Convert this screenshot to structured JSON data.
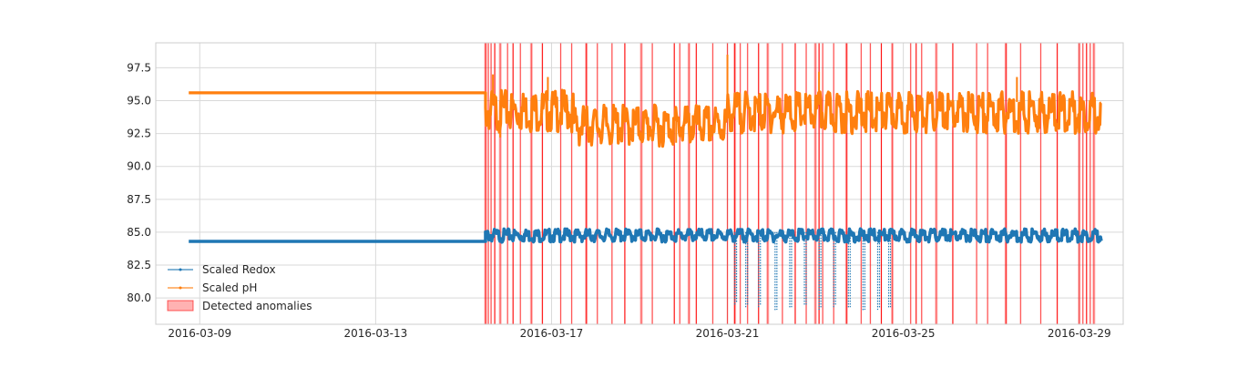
{
  "chart_data": {
    "type": "line",
    "title": "",
    "xlabel": "",
    "ylabel": "",
    "x_start": "2016-03-08",
    "x_end": "2016-03-30",
    "ylim": [
      78.0,
      99.4
    ],
    "xticks": [
      "2016-03-09",
      "2016-03-13",
      "2016-03-17",
      "2016-03-21",
      "2016-03-25",
      "2016-03-29"
    ],
    "yticks": [
      80.0,
      82.5,
      85.0,
      87.5,
      90.0,
      92.5,
      95.0,
      97.5
    ],
    "grid": true,
    "legend_position": "lower-left",
    "series": [
      {
        "name": "Scaled Redox",
        "color": "#1f77b4",
        "flat_segment": {
          "x_start": "2016-03-08 18:00",
          "x_end": "2016-03-15 12:00",
          "y": 84.3
        },
        "baseline_after": 85.0,
        "dips": [
          {
            "x": "2016-03-21 04:00",
            "y": 79.5
          },
          {
            "x": "2016-03-21 10:00",
            "y": 79.3
          },
          {
            "x": "2016-03-21 17:00",
            "y": 79.3
          },
          {
            "x": "2016-03-22 02:00",
            "y": 79.0
          },
          {
            "x": "2016-03-22 10:00",
            "y": 79.2
          },
          {
            "x": "2016-03-22 18:00",
            "y": 79.4
          },
          {
            "x": "2016-03-23 02:00",
            "y": 79.1
          },
          {
            "x": "2016-03-23 10:00",
            "y": 79.3
          },
          {
            "x": "2016-03-23 18:00",
            "y": 79.2
          },
          {
            "x": "2016-03-24 02:00",
            "y": 79.0
          },
          {
            "x": "2016-03-24 10:00",
            "y": 79.1
          },
          {
            "x": "2016-03-24 16:00",
            "y": 79.2
          }
        ]
      },
      {
        "name": "Scaled pH",
        "color": "#ff7f0e",
        "flat_segment": {
          "x_start": "2016-03-08 18:00",
          "x_end": "2016-03-15 12:00",
          "y": 95.6
        },
        "segments_after": [
          {
            "x_start": "2016-03-15 12:00",
            "x_end": "2016-03-17 12:00",
            "y": 95.0
          },
          {
            "x_start": "2016-03-17 12:00",
            "x_end": "2016-03-21 00:00",
            "y": 93.9
          },
          {
            "x_start": "2016-03-21 00:00",
            "x_end": "2016-03-29 12:00",
            "y": 94.9
          }
        ],
        "spikes": [
          {
            "x": "2016-03-15 16:00",
            "y": 97.0
          },
          {
            "x": "2016-03-15 20:00",
            "y": 92.2
          },
          {
            "x": "2016-03-16 22:00",
            "y": 96.8
          },
          {
            "x": "2016-03-19 20:00",
            "y": 91.8
          },
          {
            "x": "2016-03-20 05:00",
            "y": 92.0
          },
          {
            "x": "2016-03-21 00:00",
            "y": 98.5
          },
          {
            "x": "2016-03-23 02:00",
            "y": 97.2
          },
          {
            "x": "2016-03-27 14:00",
            "y": 96.8
          }
        ]
      },
      {
        "name": "Detected anomalies",
        "color": "#ff0000",
        "kind": "vertical-spans",
        "times": [
          "2016-03-15 12:00",
          "2016-03-15 13:30",
          "2016-03-15 15:00",
          "2016-03-15 17:00",
          "2016-03-15 20:00",
          "2016-03-16 00:00",
          "2016-03-16 03:00",
          "2016-03-16 07:00",
          "2016-03-16 13:00",
          "2016-03-16 19:00",
          "2016-03-17 05:00",
          "2016-03-17 11:00",
          "2016-03-17 19:00",
          "2016-03-18 01:00",
          "2016-03-18 09:00",
          "2016-03-18 16:00",
          "2016-03-19 01:00",
          "2016-03-19 07:00",
          "2016-03-19 19:00",
          "2016-03-19 22:00",
          "2016-03-20 03:00",
          "2016-03-20 07:00",
          "2016-03-20 16:00",
          "2016-03-21 00:00",
          "2016-03-21 04:00",
          "2016-03-21 07:00",
          "2016-03-21 11:00",
          "2016-03-21 17:00",
          "2016-03-21 22:00",
          "2016-03-22 06:00",
          "2016-03-22 13:00",
          "2016-03-22 19:00",
          "2016-03-23 00:00",
          "2016-03-23 02:00",
          "2016-03-23 04:00",
          "2016-03-23 10:00",
          "2016-03-23 17:00",
          "2016-03-24 01:00",
          "2016-03-24 06:00",
          "2016-03-24 12:00",
          "2016-03-24 18:00",
          "2016-03-25 04:00",
          "2016-03-25 07:00",
          "2016-03-25 10:00",
          "2016-03-25 18:00",
          "2016-03-26 03:00",
          "2016-03-26 16:00",
          "2016-03-26 22:00",
          "2016-03-27 08:00",
          "2016-03-27 16:00",
          "2016-03-28 03:00",
          "2016-03-28 12:00",
          "2016-03-29 00:00",
          "2016-03-29 02:00",
          "2016-03-29 04:00",
          "2016-03-29 06:00",
          "2016-03-29 08:00"
        ]
      }
    ]
  }
}
